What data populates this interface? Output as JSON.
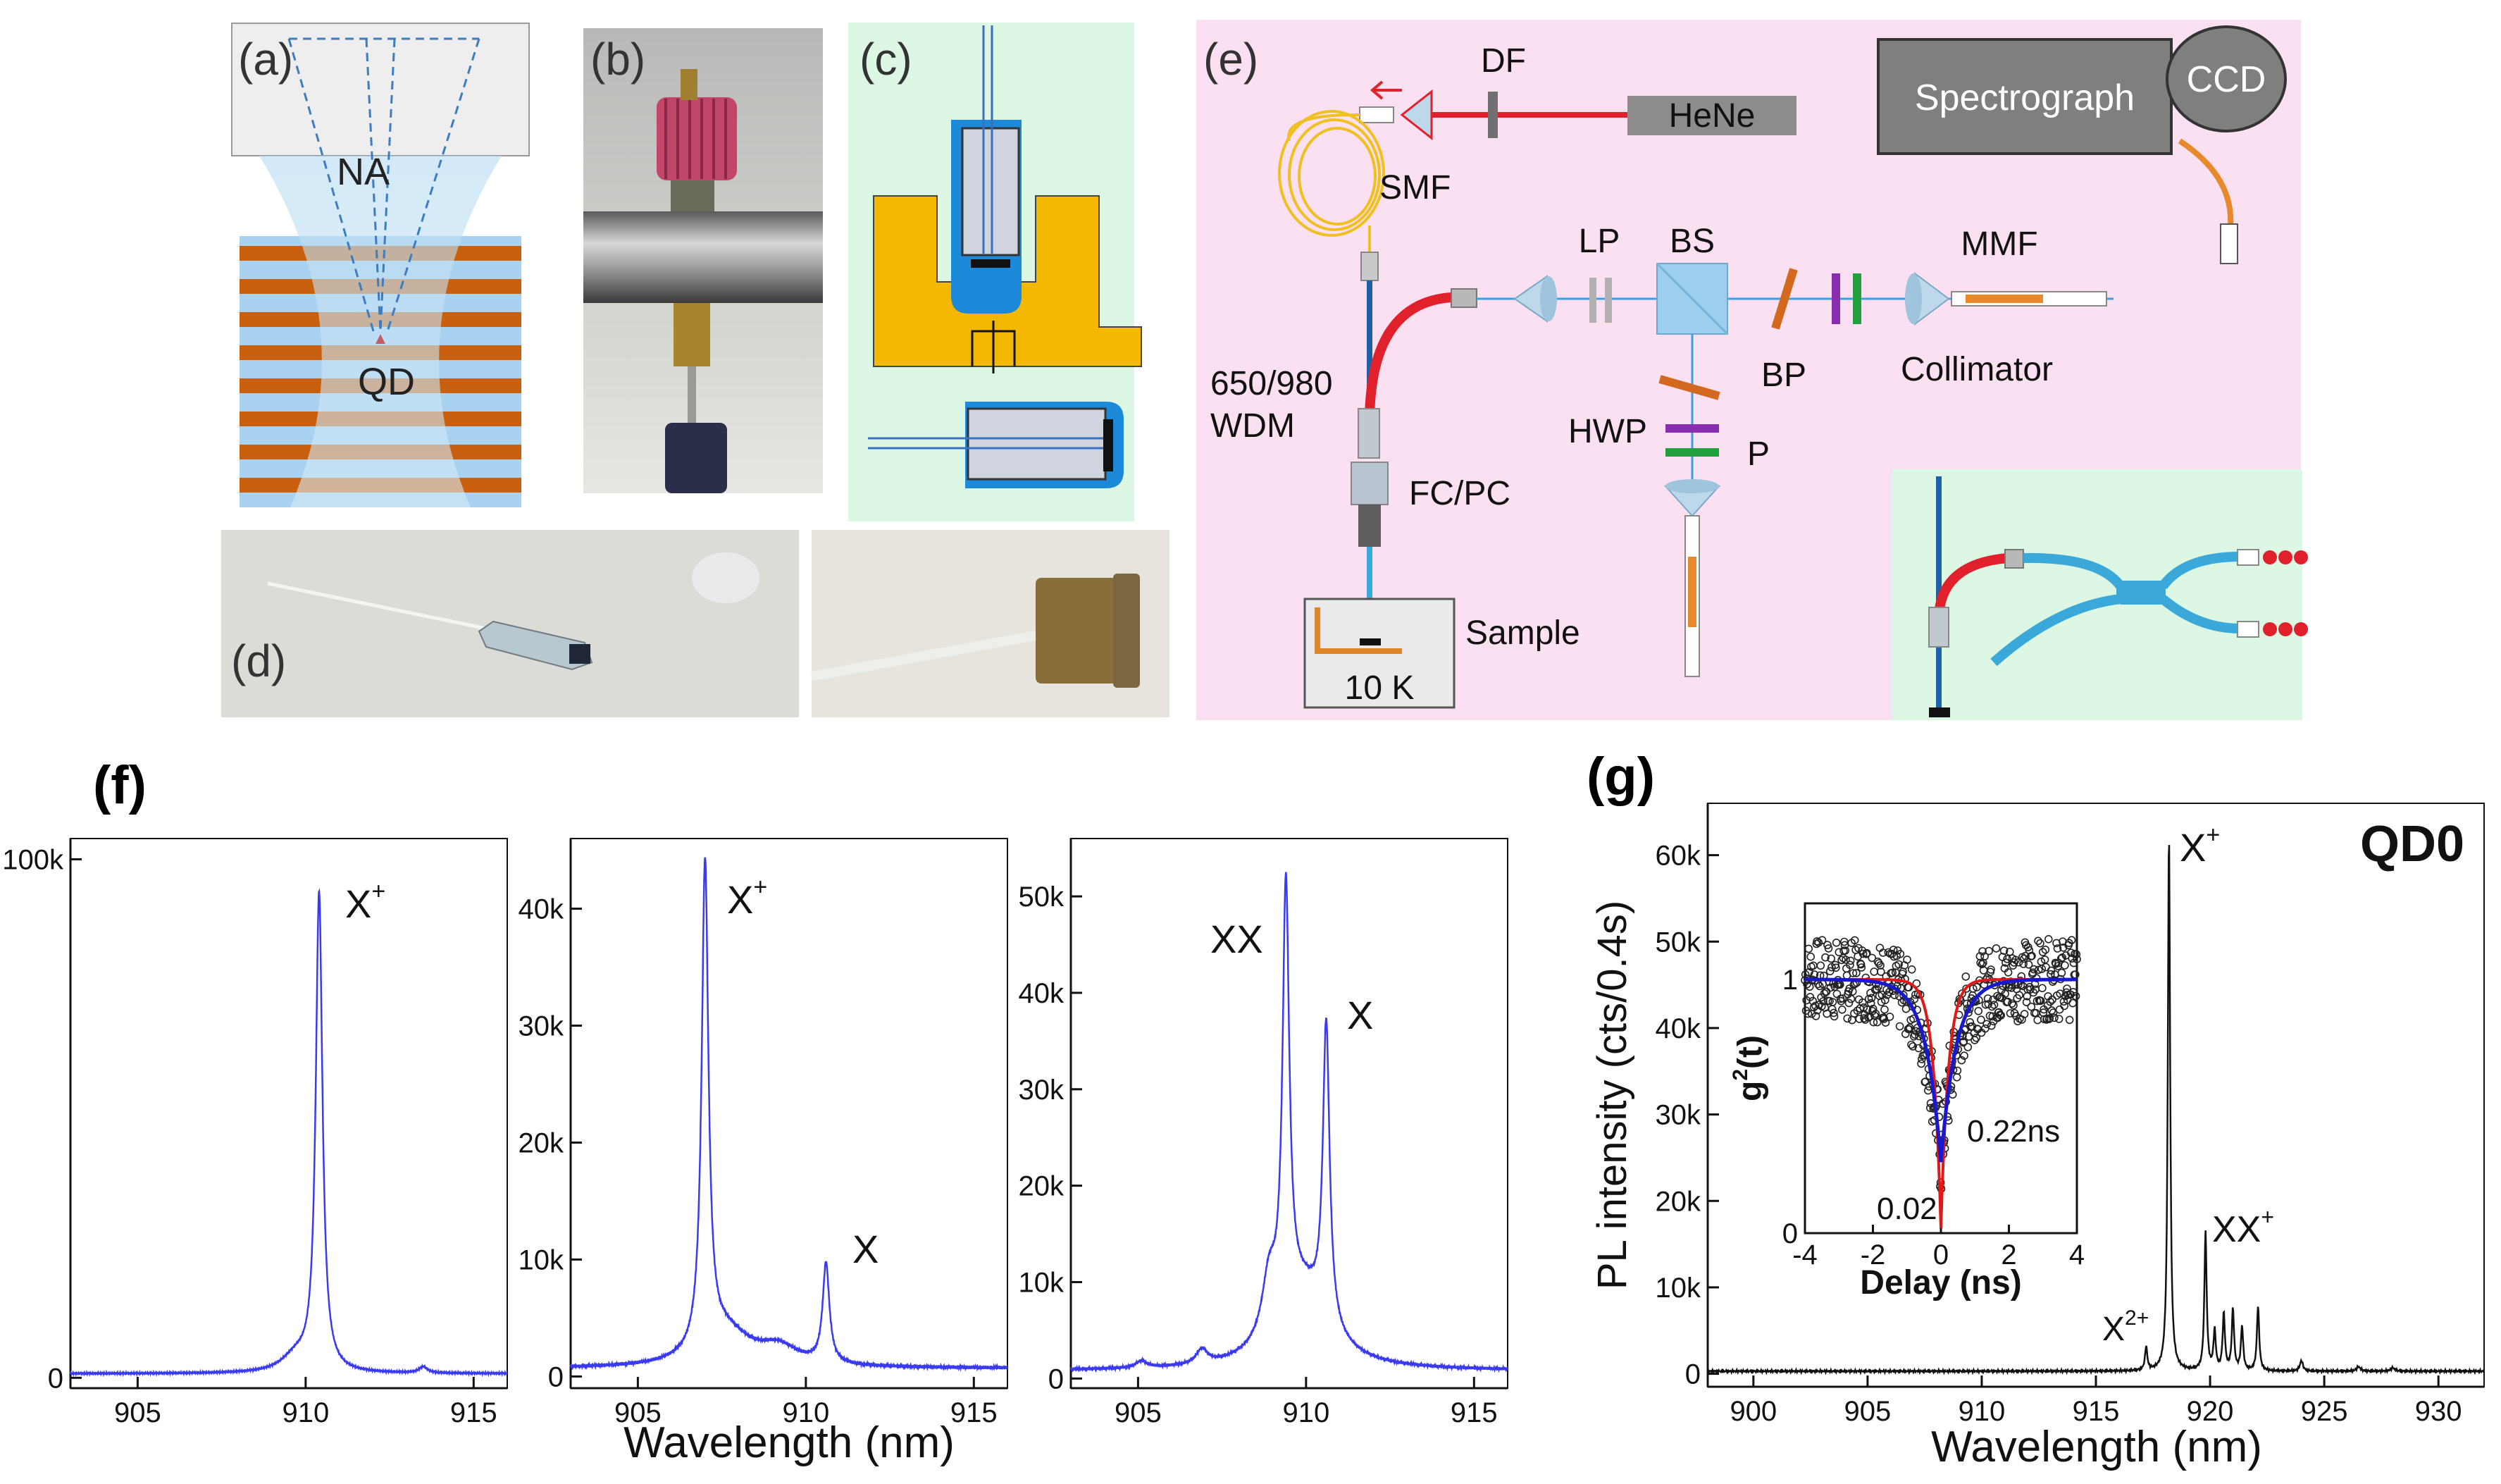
{
  "panel_labels": {
    "a": "(a)",
    "b": "(b)",
    "c": "(c)",
    "d": "(d)",
    "e": "(e)",
    "f": "(f)",
    "g": "(g)"
  },
  "panel_a": {
    "na_label": "NA",
    "qd_label": "QD"
  },
  "setup": {
    "df": "DF",
    "hene": "HeNe",
    "spectrograph": "Spectrograph",
    "ccd": "CCD",
    "smf": "SMF",
    "lp": "LP",
    "bs": "BS",
    "mmf": "MMF",
    "bp_right": "BP",
    "collimator": "Collimator",
    "wdm_line1": "650/980",
    "wdm_line2": "WDM",
    "hwp": "HWP",
    "p": "P",
    "fcpc": "FC/PC",
    "sample": "Sample",
    "temp": "10 K"
  },
  "colors": {
    "pink_bg": "#fbe0f2",
    "green_bg": "#dcf8e4",
    "copper": "#c8600f",
    "laser_red": "#e0202a",
    "fiber_blue": "#2f8fd0",
    "spectrum_blue": "#3a3af0",
    "fiber_yellow": "#f0c020",
    "gray_box": "#7f7f7f",
    "gold": "#f5b800",
    "hwp_purple": "#8a2cb0",
    "p_green": "#22a040",
    "bp_orange": "#d2691e",
    "fit_red": "#e01818",
    "fit_blue": "#1818d0"
  },
  "chart_data": [
    {
      "id": "f1",
      "type": "line",
      "x_ticks": [
        905,
        910,
        915
      ],
      "y_ticks": [
        "0",
        "100k"
      ],
      "xlim": [
        903,
        916
      ],
      "ylim": [
        -2000,
        104000
      ],
      "peaks": [
        {
          "center": 910.4,
          "amp": 92000,
          "width": 0.12
        },
        {
          "center": 909.7,
          "amp": 3000,
          "width": 0.5
        },
        {
          "center": 913.5,
          "amp": 1200,
          "width": 0.15
        }
      ],
      "baseline": 800,
      "annotations": [
        {
          "base": "X",
          "sup": "+"
        }
      ],
      "title": "",
      "xlabel": "",
      "ylabel": ""
    },
    {
      "id": "f2",
      "type": "line",
      "x_ticks": [
        905,
        910,
        915
      ],
      "y_ticks": [
        "0",
        "10k",
        "20k",
        "30k",
        "40k"
      ],
      "xlim": [
        903,
        916
      ],
      "ylim": [
        -1000,
        46000
      ],
      "peaks": [
        {
          "center": 907.0,
          "amp": 41500,
          "width": 0.12
        },
        {
          "center": 907.6,
          "amp": 3000,
          "width": 0.9
        },
        {
          "center": 910.6,
          "amp": 8500,
          "width": 0.12
        },
        {
          "center": 909.2,
          "amp": 1500,
          "width": 0.7
        }
      ],
      "baseline": 700,
      "annotations": [
        {
          "base": "X",
          "sup": "+"
        },
        {
          "base": "X",
          "sup": ""
        }
      ],
      "title": "",
      "xlabel": "Wavelength (nm)",
      "ylabel": ""
    },
    {
      "id": "f3",
      "type": "line",
      "x_ticks": [
        905,
        910,
        915
      ],
      "y_ticks": [
        "0",
        "10k",
        "20k",
        "30k",
        "40k",
        "50k"
      ],
      "xlim": [
        903,
        916
      ],
      "ylim": [
        -1000,
        56000
      ],
      "peaks": [
        {
          "center": 909.4,
          "amp": 44000,
          "width": 0.12
        },
        {
          "center": 910.6,
          "amp": 31000,
          "width": 0.12
        },
        {
          "center": 909.9,
          "amp": 8000,
          "width": 0.9
        },
        {
          "center": 908.9,
          "amp": 6000,
          "width": 0.25
        },
        {
          "center": 906.9,
          "amp": 1500,
          "width": 0.2
        },
        {
          "center": 905.1,
          "amp": 700,
          "width": 0.2
        }
      ],
      "baseline": 800,
      "annotations": [
        {
          "base": "XX",
          "sup": ""
        },
        {
          "base": "X",
          "sup": ""
        }
      ],
      "title": "",
      "xlabel": "",
      "ylabel": ""
    },
    {
      "id": "g",
      "type": "line",
      "x_ticks": [
        900,
        905,
        910,
        915,
        920,
        925,
        930
      ],
      "y_ticks": [
        "0",
        "10k",
        "20k",
        "30k",
        "40k",
        "50k",
        "60k"
      ],
      "xlim": [
        898,
        932
      ],
      "ylim": [
        -1500,
        66000
      ],
      "peaks": [
        {
          "center": 918.2,
          "amp": 62000,
          "width": 0.06
        },
        {
          "center": 917.2,
          "amp": 2700,
          "width": 0.06
        },
        {
          "center": 919.8,
          "amp": 16000,
          "width": 0.06
        },
        {
          "center": 920.2,
          "amp": 4500,
          "width": 0.06
        },
        {
          "center": 920.6,
          "amp": 6500,
          "width": 0.06
        },
        {
          "center": 921.0,
          "amp": 7000,
          "width": 0.06
        },
        {
          "center": 921.4,
          "amp": 5000,
          "width": 0.06
        },
        {
          "center": 922.1,
          "amp": 7500,
          "width": 0.06
        },
        {
          "center": 924.0,
          "amp": 1200,
          "width": 0.08
        },
        {
          "center": 926.5,
          "amp": 500,
          "width": 0.1
        },
        {
          "center": 928.0,
          "amp": 400,
          "width": 0.1
        }
      ],
      "baseline": 300,
      "annotations": [
        {
          "base": "X",
          "sup": "+"
        },
        {
          "base": "XX",
          "sup": "+"
        },
        {
          "base": "X",
          "sup": "2+"
        }
      ],
      "sample_label": "QD0",
      "title": "",
      "xlabel": "Wavelength (nm)",
      "ylabel": "PL intensity (cts/0.4s)"
    },
    {
      "id": "g_inset",
      "type": "scatter",
      "x_ticks": [
        -4,
        -2,
        0,
        2,
        4
      ],
      "y_ticks": [
        "0",
        "1"
      ],
      "xlim": [
        -4,
        4
      ],
      "ylim": [
        0,
        1.3
      ],
      "fits": [
        {
          "name": "red",
          "g0": 0.02,
          "tau": 0.22
        },
        {
          "name": "blue",
          "g0": 0.28,
          "tau": 0.45
        }
      ],
      "annotations": {
        "tau_label": "0.22ns",
        "g0_label": "0.02"
      },
      "ylabel_base": "g",
      "ylabel_sup": "2",
      "ylabel_tail": "(t)",
      "xlabel": "Delay (ns)"
    }
  ]
}
